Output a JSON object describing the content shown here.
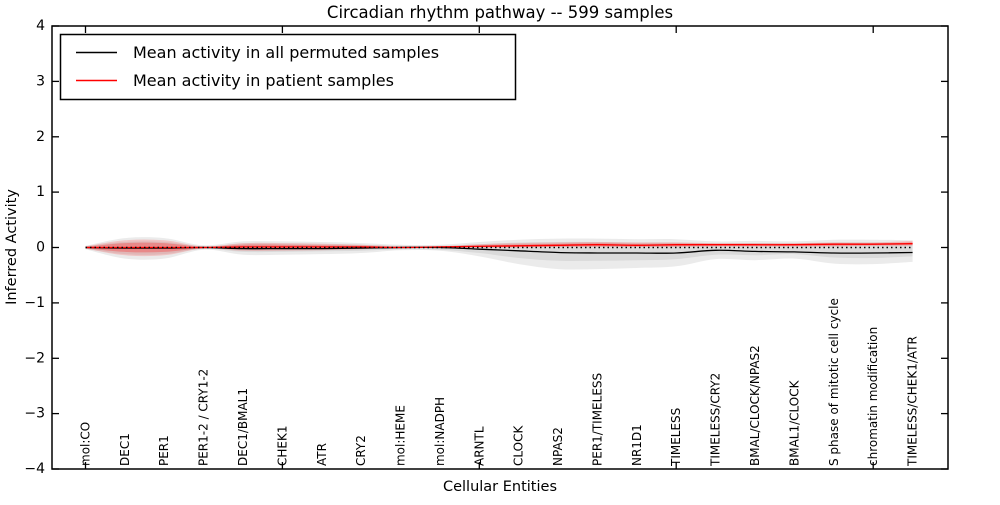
{
  "chart_data": {
    "type": "area",
    "title": "Circadian rhythm pathway -- 599 samples",
    "xlabel": "Cellular Entities",
    "ylabel": "Inferred Activity",
    "ylim": [
      -4,
      4
    ],
    "xlim": [
      -0.85,
      21.9
    ],
    "grid": false,
    "legend_position": "upper left",
    "yticks": [
      -4,
      -3,
      -2,
      -1,
      0,
      1,
      2,
      3,
      4
    ],
    "ytick_labels": [
      "−4",
      "−3",
      "−2",
      "−1",
      "0",
      "1",
      "2",
      "3",
      "4"
    ],
    "xtick_positions": [
      0,
      5,
      10,
      15,
      20
    ],
    "categories": [
      "mol:CO",
      "DEC1",
      "PER1",
      "PER1-2 / CRY1-2",
      "DEC1/BMAL1",
      "CHEK1",
      "ATR",
      "CRY2",
      "mol:HEME",
      "mol:NADPH",
      "ARNTL",
      "CLOCK",
      "NPAS2",
      "PER1/TIMELESS",
      "NR1D1",
      "TIMELESS",
      "TIMELESS/CRY2",
      "BMAL/CLOCK/NPAS2",
      "BMAL1/CLOCK",
      "S phase of mitotic cell cycle",
      "chromatin modification",
      "TIMELESS/CHEK1/ATR"
    ],
    "zero_line": {
      "y": 0,
      "color": "#000000",
      "style": "dotted"
    },
    "series": [
      {
        "name": "Mean activity in all permuted samples",
        "color": "#000000",
        "values": [
          0,
          -0.01,
          -0.01,
          0,
          -0.02,
          -0.02,
          -0.02,
          -0.01,
          0,
          0,
          -0.03,
          -0.06,
          -0.09,
          -0.1,
          -0.1,
          -0.1,
          -0.05,
          -0.07,
          -0.08,
          -0.1,
          -0.1,
          -0.09
        ]
      },
      {
        "name": "Mean activity in patient samples",
        "color": "#ff0000",
        "values": [
          0,
          0,
          0,
          0,
          0.01,
          0.01,
          0.01,
          0.01,
          0,
          0.01,
          0.02,
          0.03,
          0.04,
          0.05,
          0.04,
          0.05,
          0.05,
          0.05,
          0.05,
          0.06,
          0.06,
          0.07
        ]
      }
    ],
    "bands": [
      {
        "name": "permuted-band-outer",
        "color": "#000000",
        "opacity": 0.08,
        "upper": [
          0.03,
          0.17,
          0.17,
          0.04,
          0.11,
          0.11,
          0.1,
          0.08,
          0.05,
          0.05,
          0.1,
          0.14,
          0.16,
          0.16,
          0.15,
          0.15,
          0.11,
          0.12,
          0.11,
          0.14,
          0.14,
          0.13
        ],
        "lower": [
          -0.03,
          -0.2,
          -0.2,
          -0.04,
          -0.13,
          -0.13,
          -0.12,
          -0.1,
          -0.05,
          -0.06,
          -0.16,
          -0.3,
          -0.39,
          -0.39,
          -0.37,
          -0.34,
          -0.21,
          -0.23,
          -0.2,
          -0.29,
          -0.3,
          -0.26
        ]
      },
      {
        "name": "permuted-band-inner",
        "color": "#000000",
        "opacity": 0.07,
        "upper": [
          0.02,
          0.1,
          0.1,
          0.02,
          0.07,
          0.07,
          0.06,
          0.05,
          0.03,
          0.03,
          0.06,
          0.09,
          0.1,
          0.1,
          0.09,
          0.09,
          0.07,
          0.08,
          0.07,
          0.09,
          0.09,
          0.08
        ],
        "lower": [
          -0.02,
          -0.12,
          -0.12,
          -0.02,
          -0.08,
          -0.08,
          -0.07,
          -0.06,
          -0.03,
          -0.04,
          -0.1,
          -0.19,
          -0.24,
          -0.24,
          -0.23,
          -0.21,
          -0.13,
          -0.14,
          -0.12,
          -0.18,
          -0.19,
          -0.16
        ]
      },
      {
        "name": "patient-band-outer",
        "color": "#ff0000",
        "opacity": 0.16,
        "upper": [
          0.02,
          0.13,
          0.13,
          0.02,
          0.08,
          0.08,
          0.07,
          0.05,
          0.02,
          0.02,
          0.06,
          0.08,
          0.09,
          0.1,
          0.09,
          0.09,
          0.08,
          0.08,
          0.08,
          0.09,
          0.09,
          0.12
        ],
        "lower": [
          -0.02,
          -0.14,
          -0.14,
          -0.02,
          -0.06,
          -0.06,
          -0.05,
          -0.03,
          -0.01,
          0.0,
          0.0,
          0.0,
          0.01,
          0.01,
          0.01,
          0.01,
          0.02,
          0.02,
          0.02,
          0.02,
          0.03,
          0.03
        ]
      },
      {
        "name": "patient-band-inner",
        "color": "#ff0000",
        "opacity": 0.25,
        "upper": [
          0.01,
          0.08,
          0.08,
          0.01,
          0.05,
          0.05,
          0.04,
          0.03,
          0.01,
          0.015,
          0.04,
          0.055,
          0.065,
          0.075,
          0.065,
          0.07,
          0.065,
          0.065,
          0.065,
          0.075,
          0.075,
          0.095
        ],
        "lower": [
          -0.01,
          -0.08,
          -0.08,
          -0.01,
          -0.03,
          -0.03,
          -0.025,
          -0.015,
          -0.005,
          0.0,
          0.005,
          0.01,
          0.02,
          0.025,
          0.02,
          0.025,
          0.03,
          0.03,
          0.03,
          0.035,
          0.04,
          0.045
        ]
      }
    ],
    "legend": {
      "entries": [
        {
          "label": "Mean activity in all permuted samples",
          "color": "#000000"
        },
        {
          "label": "Mean activity in patient samples",
          "color": "#ff0000"
        }
      ]
    }
  }
}
